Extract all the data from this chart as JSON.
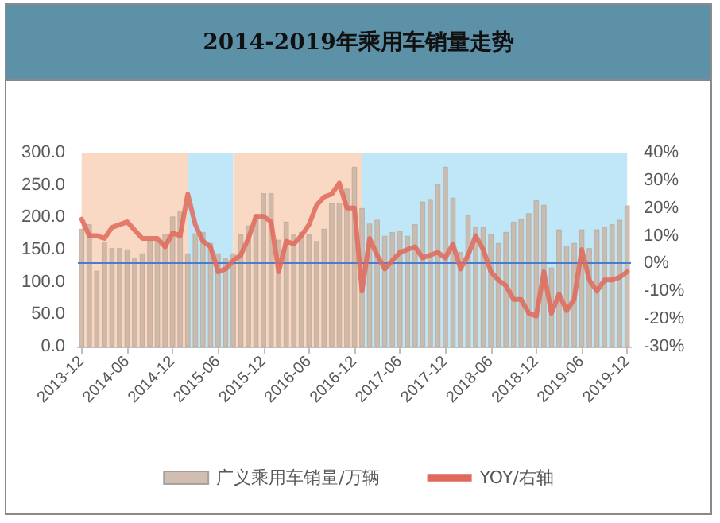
{
  "chart_data": {
    "type": "bar",
    "title": "2014-2019年乘用车销量走势",
    "x": [
      "2013-12",
      "2014-01",
      "2014-02",
      "2014-03",
      "2014-04",
      "2014-05",
      "2014-06",
      "2014-07",
      "2014-08",
      "2014-09",
      "2014-10",
      "2014-11",
      "2014-12",
      "2015-01",
      "2015-02",
      "2015-03",
      "2015-04",
      "2015-05",
      "2015-06",
      "2015-07",
      "2015-08",
      "2015-09",
      "2015-10",
      "2015-11",
      "2015-12",
      "2016-01",
      "2016-02",
      "2016-03",
      "2016-04",
      "2016-05",
      "2016-06",
      "2016-07",
      "2016-08",
      "2016-09",
      "2016-10",
      "2016-11",
      "2016-12",
      "2017-01",
      "2017-02",
      "2017-03",
      "2017-04",
      "2017-05",
      "2017-06",
      "2017-07",
      "2017-08",
      "2017-09",
      "2017-10",
      "2017-11",
      "2017-12",
      "2018-01",
      "2018-02",
      "2018-03",
      "2018-04",
      "2018-05",
      "2018-06",
      "2018-07",
      "2018-08",
      "2018-09",
      "2018-10",
      "2018-11",
      "2018-12",
      "2019-01",
      "2019-02",
      "2019-03",
      "2019-04",
      "2019-05",
      "2019-06",
      "2019-07",
      "2019-08",
      "2019-09",
      "2019-10",
      "2019-11",
      "2019-12"
    ],
    "xlim": [
      "2013-12",
      "2019-12"
    ],
    "xticks": [
      {
        "value": "2013-12",
        "label": "2013-12"
      },
      {
        "value": "2014-06",
        "label": "2014-06"
      },
      {
        "value": "2014-12",
        "label": "2014-12"
      },
      {
        "value": "2015-06",
        "label": "2015-06"
      },
      {
        "value": "2015-12",
        "label": "2015-12"
      },
      {
        "value": "2016-06",
        "label": "2016-06"
      },
      {
        "value": "2016-12",
        "label": "2016-12"
      },
      {
        "value": "2017-06",
        "label": "2017-06"
      },
      {
        "value": "2017-12",
        "label": "2017-12"
      },
      {
        "value": "2018-06",
        "label": "2018-06"
      },
      {
        "value": "2018-12",
        "label": "2018-12"
      },
      {
        "value": "2019-06",
        "label": "2019-06"
      },
      {
        "value": "2019-12",
        "label": "2019-12"
      }
    ],
    "series": [
      {
        "name": "广义乘用车销量/万辆",
        "color": "#c9b3a3",
        "values": [
          182,
          189,
          117,
          162,
          152,
          152,
          150,
          136,
          144,
          164,
          164,
          173,
          201,
          210,
          144,
          175,
          177,
          160,
          144,
          136,
          144,
          173,
          187,
          205,
          237,
          237,
          165,
          193,
          173,
          177,
          173,
          163,
          182,
          222,
          222,
          244,
          278,
          214,
          190,
          196,
          171,
          177,
          179,
          171,
          189,
          224,
          228,
          251,
          278,
          230,
          146,
          203,
          185,
          185,
          173,
          160,
          177,
          193,
          197,
          206,
          226,
          219,
          122,
          181,
          156,
          160,
          181,
          152,
          181,
          185,
          189,
          196,
          218
        ]
      },
      {
        "name": "YOY/右轴",
        "type": "line",
        "axis": "y2",
        "color": "#e0695a",
        "values": [
          16,
          10,
          10,
          9,
          13,
          14,
          15,
          12,
          9,
          9,
          9,
          6,
          11,
          10,
          25,
          14,
          8,
          6,
          -3,
          -2,
          1,
          3,
          9,
          17,
          17,
          15,
          -3,
          8,
          7,
          10,
          14,
          21,
          24,
          25,
          29,
          20,
          20,
          -10,
          9,
          3,
          -2,
          1,
          4,
          5,
          6,
          2,
          3,
          4,
          2,
          7,
          -2,
          3,
          10,
          5,
          -3,
          -6,
          -8,
          -13,
          -13,
          -18,
          -19,
          -3,
          -18,
          -11,
          -17,
          -13,
          5,
          -6,
          -10,
          -6,
          -6,
          -5,
          -3
        ]
      }
    ],
    "ylim": [
      0,
      300
    ],
    "yticks": [
      {
        "value": 0,
        "label": "0.0"
      },
      {
        "value": 50,
        "label": "50.0"
      },
      {
        "value": 100,
        "label": "100.0"
      },
      {
        "value": 150,
        "label": "150.0"
      },
      {
        "value": 200,
        "label": "200.0"
      },
      {
        "value": 250,
        "label": "250.0"
      },
      {
        "value": 300,
        "label": "300.0"
      }
    ],
    "y2lim": [
      -30,
      40
    ],
    "y2ticks": [
      {
        "value": -30,
        "label": "-30%"
      },
      {
        "value": -20,
        "label": "-20%"
      },
      {
        "value": -10,
        "label": "-10%"
      },
      {
        "value": 0,
        "label": "0%"
      },
      {
        "value": 10,
        "label": "10%"
      },
      {
        "value": 20,
        "label": "20%"
      },
      {
        "value": 30,
        "label": "30%"
      },
      {
        "value": 40,
        "label": "40%"
      }
    ],
    "bands": [
      {
        "axis": "x",
        "from": "2013-12",
        "to": "2015-02",
        "color": "#f9d9c4"
      },
      {
        "axis": "x",
        "from": "2015-02",
        "to": "2015-08",
        "color": "#bfe7f7"
      },
      {
        "axis": "x",
        "from": "2015-08",
        "to": "2017-01",
        "color": "#f9d9c4"
      },
      {
        "axis": "x",
        "from": "2017-01",
        "to": "2019-12",
        "color": "#bfe7f7"
      }
    ],
    "ref_lines": [
      {
        "axis": "y2",
        "value": 0,
        "color": "#4a7bd0"
      }
    ],
    "grid": false,
    "legend": "bottom"
  }
}
